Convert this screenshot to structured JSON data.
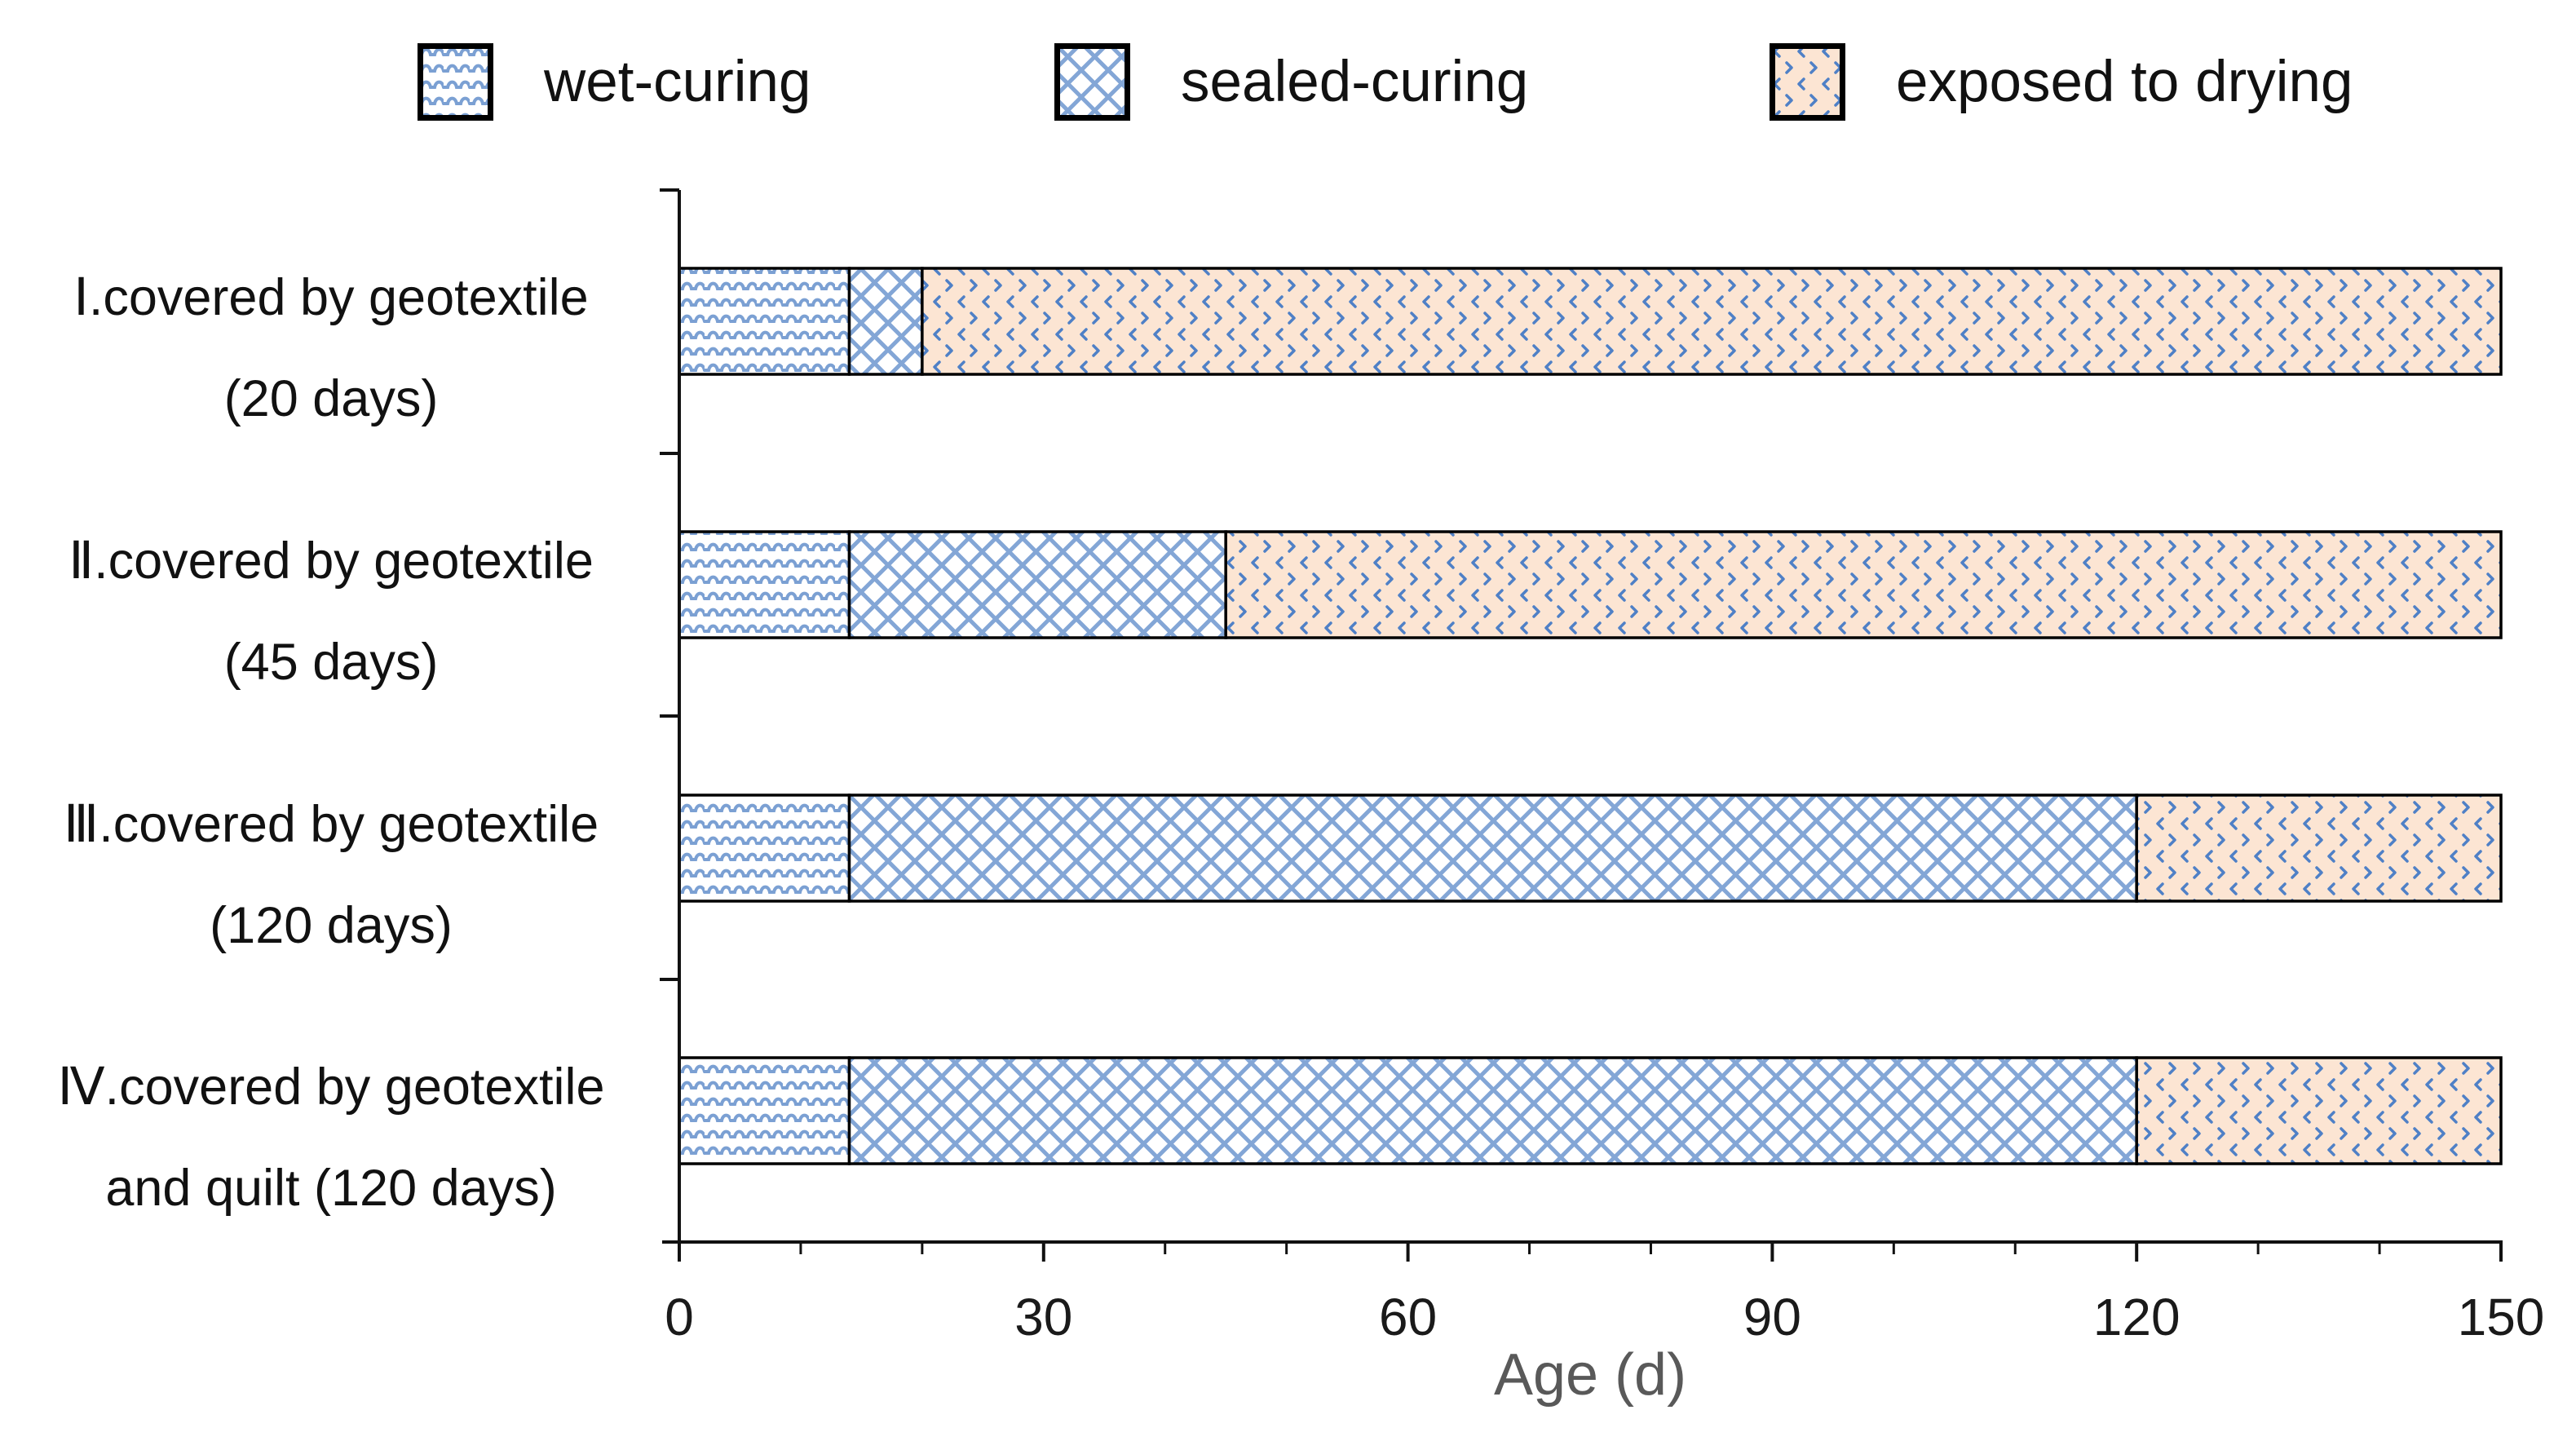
{
  "legend": {
    "items": [
      {
        "label": "wet-curing",
        "pattern": "wave"
      },
      {
        "label": "sealed-curing",
        "pattern": "crosshatch"
      },
      {
        "label": "exposed to drying",
        "pattern": "chevron"
      }
    ]
  },
  "colors": {
    "pattern_blue": "#6d96cf",
    "chevron_blue": "#4f80c6",
    "exposed_fill": "#fce5d3",
    "bar_border": "#000000",
    "axis": "#111111",
    "tick_label": "#1a1a1a",
    "xlabel_text": "#595959"
  },
  "chart_data": {
    "type": "bar",
    "orientation": "horizontal",
    "stacked": true,
    "title": "",
    "xlabel": "Age (d)",
    "ylabel": "",
    "xlim": [
      0,
      150
    ],
    "xticks": [
      0,
      30,
      60,
      90,
      120,
      150
    ],
    "minor_tick_step": 10,
    "grid": false,
    "legend_position": "top",
    "categories": [
      {
        "line1": "Ⅰ.covered by geotextile",
        "line2": "(20 days)"
      },
      {
        "line1": "Ⅱ.covered by geotextile",
        "line2": "(45 days)"
      },
      {
        "line1": "Ⅲ.covered by geotextile",
        "line2": "(120 days)"
      },
      {
        "line1": "Ⅳ.covered by geotextile",
        "line2": "and quilt (120 days)"
      }
    ],
    "series": [
      {
        "name": "wet-curing",
        "pattern": "wave",
        "values": [
          14,
          14,
          14,
          14
        ]
      },
      {
        "name": "sealed-curing",
        "pattern": "crosshatch",
        "values": [
          6,
          31,
          106,
          106
        ]
      },
      {
        "name": "exposed to drying",
        "pattern": "chevron",
        "values": [
          130,
          105,
          30,
          30
        ]
      }
    ],
    "bar_totals": [
      150,
      150,
      150,
      150
    ]
  }
}
